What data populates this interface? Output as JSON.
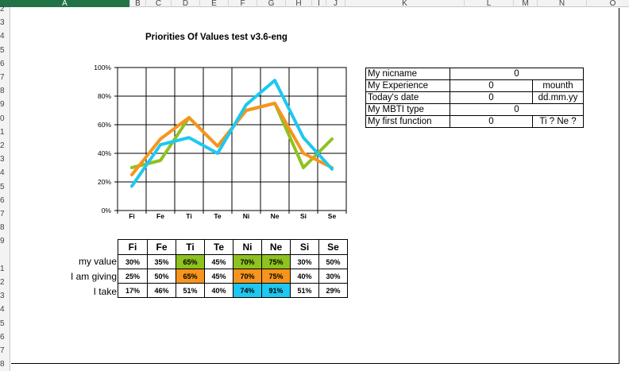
{
  "colors": {
    "my_value": "#8ec21f",
    "giving": "#f7941d",
    "take": "#1ec8f0"
  },
  "columns": [
    "A",
    "B",
    "C",
    "D",
    "E",
    "F",
    "G",
    "H",
    "I",
    "J",
    "K",
    "L",
    "M",
    "N",
    "O"
  ],
  "rows": [
    "2",
    "3",
    "4",
    "5",
    "6",
    "7",
    "8",
    "9",
    "0",
    "1",
    "2",
    "3",
    "4",
    "5",
    "6",
    "7",
    "8",
    "9",
    "",
    "1",
    "2",
    "3",
    "4",
    "5",
    "6",
    "7",
    "8"
  ],
  "title": "Priorities Of Values test v3.6-eng",
  "chart_data": {
    "type": "line",
    "categories": [
      "Fi",
      "Fe",
      "Ti",
      "Te",
      "Ni",
      "Ne",
      "Si",
      "Se"
    ],
    "series": [
      {
        "values": [
          30,
          35,
          65,
          45,
          70,
          75,
          30,
          50
        ]
      },
      {
        "values": [
          25,
          50,
          65,
          45,
          70,
          75,
          40,
          30
        ]
      },
      {
        "values": [
          17,
          46,
          51,
          40,
          74,
          91,
          51,
          29
        ]
      }
    ],
    "yticks": [
      "0%",
      "20%",
      "40%",
      "60%",
      "80%",
      "100%"
    ],
    "ylim": [
      0,
      100
    ],
    "grid": true
  },
  "results": {
    "headers": [
      "Fi",
      "Fe",
      "Ti",
      "Te",
      "Ni",
      "Ne",
      "Si",
      "Se"
    ],
    "rows": [
      {
        "label": "my value",
        "cells": [
          "30%",
          "35%",
          "65%",
          "45%",
          "70%",
          "75%",
          "30%",
          "50%"
        ]
      },
      {
        "label": "I am giving",
        "cells": [
          "25%",
          "50%",
          "65%",
          "45%",
          "70%",
          "75%",
          "40%",
          "30%"
        ]
      },
      {
        "label": "I take",
        "cells": [
          "17%",
          "46%",
          "51%",
          "40%",
          "74%",
          "91%",
          "51%",
          "29%"
        ]
      }
    ]
  },
  "info": {
    "nickname_label": "My nicname",
    "nickname_value": "0",
    "experience_label": "My Experience",
    "experience_value": "0",
    "experience_unit": "mounth",
    "date_label": "Today's date",
    "date_value": "0",
    "date_format": "dd.mm.yy",
    "mbti_label": "My MBTI type",
    "mbti_value": "0",
    "function_label": "My first function",
    "function_value": "0",
    "function_hint": "Ti ? Ne ?"
  }
}
